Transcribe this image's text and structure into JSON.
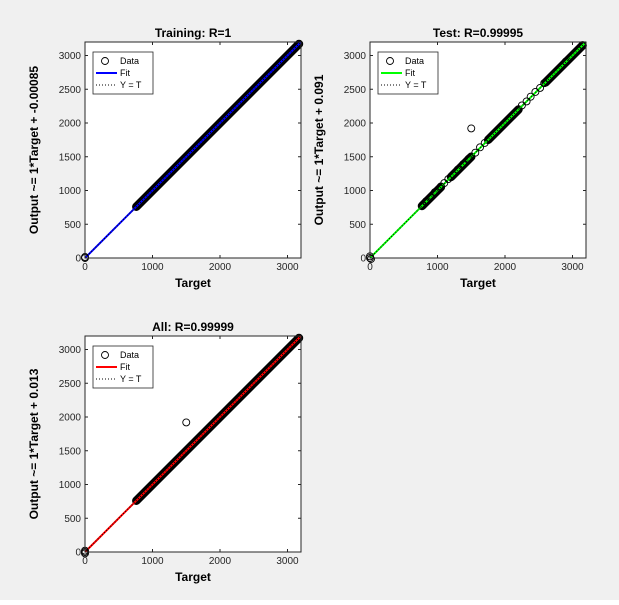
{
  "chart_data": [
    {
      "type": "scatter",
      "title": "Training: R=1",
      "xlabel": "Target",
      "ylabel": "Output ~= 1*Target + -0.00085",
      "xlim": [
        0,
        3200
      ],
      "ylim": [
        0,
        3200
      ],
      "xticks": [
        "0",
        "1000",
        "2000",
        "3000"
      ],
      "yticks": [
        "0",
        "500",
        "1000",
        "1500",
        "2000",
        "2500",
        "3000"
      ],
      "fit_color": "#0000ff",
      "legend": [
        "Data",
        "Fit",
        "Y = T"
      ],
      "legend_position": "top-left",
      "fit": {
        "slope": 1,
        "intercept": -0.00085
      },
      "data_runs": [
        [
          760,
          3170
        ]
      ],
      "data_points": [
        [
          0,
          0
        ],
        [
          0,
          15
        ]
      ]
    },
    {
      "type": "scatter",
      "title": "Test: R=0.99995",
      "xlabel": "Target",
      "ylabel": "Output ~= 1*Target + 0.091",
      "xlim": [
        0,
        3200
      ],
      "ylim": [
        0,
        3200
      ],
      "xticks": [
        "0",
        "1000",
        "2000",
        "3000"
      ],
      "yticks": [
        "0",
        "500",
        "1000",
        "1500",
        "2000",
        "2500",
        "3000"
      ],
      "fit_color": "#00ff00",
      "legend": [
        "Data",
        "Fit",
        "Y = T"
      ],
      "legend_position": "top-left",
      "fit": {
        "slope": 1,
        "intercept": 0.091
      },
      "data_runs": [
        [
          770,
          1050
        ],
        [
          1200,
          1500
        ],
        [
          1750,
          2200
        ],
        [
          2600,
          3150
        ]
      ],
      "data_points": [
        [
          0,
          0
        ],
        [
          0,
          25
        ],
        [
          15,
          -15
        ],
        [
          780,
          780
        ],
        [
          830,
          840
        ],
        [
          900,
          900
        ],
        [
          960,
          975
        ],
        [
          1050,
          1060
        ],
        [
          1100,
          1110
        ],
        [
          1160,
          1170
        ],
        [
          1300,
          1310
        ],
        [
          1380,
          1390
        ],
        [
          1460,
          1470
        ],
        [
          1500,
          1920
        ],
        [
          1560,
          1560
        ],
        [
          1630,
          1640
        ],
        [
          1700,
          1705
        ],
        [
          2250,
          2260
        ],
        [
          2320,
          2320
        ],
        [
          2380,
          2390
        ],
        [
          2450,
          2460
        ],
        [
          2520,
          2520
        ],
        [
          2580,
          2590
        ],
        [
          2900,
          2910
        ],
        [
          3150,
          3150
        ]
      ]
    },
    {
      "type": "scatter",
      "title": "All: R=0.99999",
      "xlabel": "Target",
      "ylabel": "Output ~= 1*Target + 0.013",
      "xlim": [
        0,
        3200
      ],
      "ylim": [
        0,
        3200
      ],
      "xticks": [
        "0",
        "1000",
        "2000",
        "3000"
      ],
      "yticks": [
        "0",
        "500",
        "1000",
        "1500",
        "2000",
        "2500",
        "3000"
      ],
      "fit_color": "#ff0000",
      "legend": [
        "Data",
        "Fit",
        "Y = T"
      ],
      "legend_position": "top-left",
      "fit": {
        "slope": 1,
        "intercept": 0.013
      },
      "data_runs": [
        [
          760,
          3170
        ]
      ],
      "data_points": [
        [
          0,
          0
        ],
        [
          0,
          20
        ],
        [
          0,
          -20
        ],
        [
          1500,
          1920
        ]
      ]
    }
  ]
}
